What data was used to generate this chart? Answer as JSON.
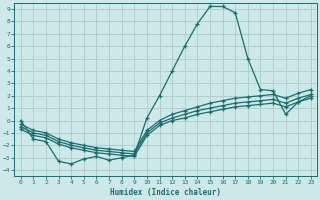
{
  "xlabel": "Humidex (Indice chaleur)",
  "bg_color": "#cce8e8",
  "grid_color": "#b0d0d0",
  "line_color": "#1a6e6e",
  "xlim": [
    -0.5,
    23.5
  ],
  "ylim": [
    -4.5,
    9.5
  ],
  "xtick_labels": [
    "0",
    "1",
    "2",
    "3",
    "4",
    "5",
    "6",
    "7",
    "8",
    "9",
    "10",
    "11",
    "12",
    "13",
    "14",
    "15",
    "16",
    "17",
    "18",
    "19",
    "20",
    "21",
    "22",
    "23"
  ],
  "xtick_vals": [
    0,
    1,
    2,
    3,
    4,
    5,
    6,
    7,
    8,
    9,
    10,
    11,
    12,
    13,
    14,
    15,
    16,
    17,
    18,
    19,
    20,
    21,
    22,
    23
  ],
  "ytick_vals": [
    -4,
    -3,
    -2,
    -1,
    0,
    1,
    2,
    3,
    4,
    5,
    6,
    7,
    8,
    9
  ],
  "line1_x": [
    0,
    1,
    2,
    3,
    4,
    5,
    6,
    7,
    8,
    9,
    10,
    11,
    12,
    13,
    14,
    15,
    16,
    17,
    18,
    19,
    20,
    21,
    22,
    23
  ],
  "line1_y": [
    0.0,
    -1.5,
    -1.7,
    -3.3,
    -3.5,
    -3.1,
    -2.9,
    -3.2,
    -3.0,
    -2.8,
    0.2,
    2.0,
    4.0,
    6.0,
    7.8,
    9.2,
    9.2,
    8.7,
    5.0,
    2.5,
    2.4,
    0.5,
    1.5,
    2.0
  ],
  "line2_x": [
    0,
    1,
    2,
    3,
    4,
    5,
    6,
    7,
    8,
    9,
    10,
    11,
    12,
    13,
    14,
    15,
    16,
    17,
    18,
    19,
    20,
    21,
    22,
    23
  ],
  "line2_y": [
    -0.3,
    -0.8,
    -1.0,
    -1.5,
    -1.8,
    -2.0,
    -2.2,
    -2.3,
    -2.4,
    -2.5,
    -0.8,
    0.0,
    0.5,
    0.8,
    1.1,
    1.4,
    1.6,
    1.8,
    1.9,
    2.0,
    2.1,
    1.8,
    2.2,
    2.5
  ],
  "line3_x": [
    0,
    1,
    2,
    3,
    4,
    5,
    6,
    7,
    8,
    9,
    10,
    11,
    12,
    13,
    14,
    15,
    16,
    17,
    18,
    19,
    20,
    21,
    22,
    23
  ],
  "line3_y": [
    -0.5,
    -1.0,
    -1.2,
    -1.7,
    -2.0,
    -2.2,
    -2.4,
    -2.5,
    -2.6,
    -2.7,
    -1.0,
    -0.2,
    0.2,
    0.5,
    0.8,
    1.0,
    1.2,
    1.4,
    1.5,
    1.6,
    1.7,
    1.4,
    1.8,
    2.1
  ],
  "line4_x": [
    0,
    1,
    2,
    3,
    4,
    5,
    6,
    7,
    8,
    9,
    10,
    11,
    12,
    13,
    14,
    15,
    16,
    17,
    18,
    19,
    20,
    21,
    22,
    23
  ],
  "line4_y": [
    -0.7,
    -1.2,
    -1.4,
    -1.9,
    -2.2,
    -2.4,
    -2.6,
    -2.7,
    -2.8,
    -2.9,
    -1.2,
    -0.4,
    0.0,
    0.2,
    0.5,
    0.7,
    0.9,
    1.1,
    1.2,
    1.3,
    1.4,
    1.1,
    1.5,
    1.8
  ]
}
